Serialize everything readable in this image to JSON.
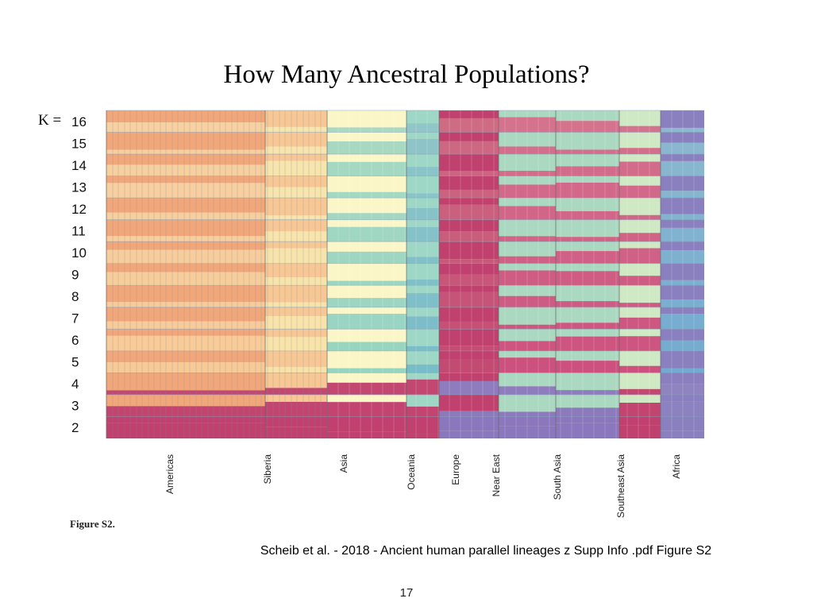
{
  "slide": {
    "title": "How Many Ancestral Populations?",
    "figure_label": "Figure S2.",
    "caption": "Scheib et al. - 2018 - Ancient human parallel lineages z Supp Info .pdf Figure S2",
    "page_number": "17"
  },
  "chart_data": {
    "type": "stacked-bar",
    "k_prefix": "K =",
    "rows": [
      "16",
      "15",
      "14",
      "13",
      "12",
      "11",
      "10",
      "9",
      "8",
      "7",
      "6",
      "5",
      "4",
      "3",
      "2"
    ],
    "regions": [
      "Americas",
      "Siberia",
      "Asia",
      "Oceania",
      "Europe",
      "Near East",
      "South Asia",
      "Southeast Asia",
      "Africa"
    ],
    "colors": {
      "americas": "#f2a77b",
      "americas_light": "#f7c896",
      "siberia": "#f7e3a8",
      "asia": "#fbf6c8",
      "asia_teal": "#8fd3c1",
      "oceania": "#9ed7c6",
      "oceania_blue": "#6fb9c9",
      "europe": "#c0416e",
      "near_east": "#c9497a",
      "south_asia": "#aad8c0",
      "southeast_asia": "#cfe9c4",
      "africa": "#8a7fbf",
      "africa_blue": "#6aa7d1",
      "base_purple": "#8a77bd"
    }
  }
}
